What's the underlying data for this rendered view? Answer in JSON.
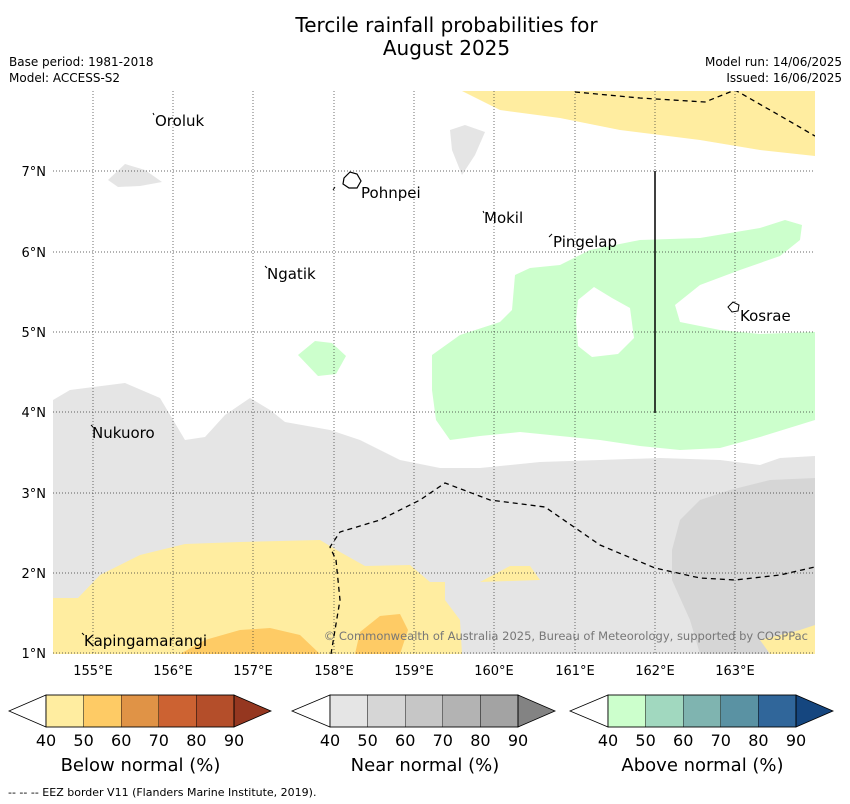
{
  "title_line1": "Tercile rainfall probabilities for",
  "title_line2": "August 2025",
  "base_period": "Base period: 1981-2018",
  "model": "Model: ACCESS-S2",
  "model_run": "Model run: 14/06/2025",
  "issued": "Issued: 16/06/2025",
  "copyright": "© Commonwealth of Australia 2025, Bureau of Meteorology, supported by COSPPac",
  "footnote": "--  --  -- EEZ border V11 (Flanders Marine Institute, 2019).",
  "map": {
    "x_ticks": [
      "155°E",
      "156°E",
      "157°E",
      "158°E",
      "159°E",
      "160°E",
      "161°E",
      "162°E",
      "163°E"
    ],
    "y_ticks": [
      "7°N",
      "6°N",
      "5°N",
      "4°N",
      "3°N",
      "2°N",
      "1°N"
    ],
    "places": [
      "Oroluk",
      "Pohnpei",
      "Mokil",
      "Pingelap",
      "Ngatik",
      "Kosrae",
      "Nukuoro",
      "Kapingamarangi"
    ]
  },
  "colorbars": [
    {
      "label": "Below normal (%)",
      "ticks": [
        "40",
        "50",
        "60",
        "70",
        "80",
        "90"
      ],
      "colors": [
        "#ffeda0",
        "#fecb65",
        "#e09346",
        "#cc6232",
        "#b44e2a",
        "#953720"
      ]
    },
    {
      "label": "Near normal (%)",
      "ticks": [
        "40",
        "50",
        "60",
        "70",
        "80",
        "90"
      ],
      "colors": [
        "#e5e5e5",
        "#d6d6d6",
        "#c6c6c6",
        "#b3b3b3",
        "#a3a3a3",
        "#838383"
      ]
    },
    {
      "label": "Above normal (%)",
      "ticks": [
        "40",
        "50",
        "60",
        "70",
        "80",
        "90"
      ],
      "colors": [
        "#ccffcc",
        "#a1d8bf",
        "#7fb4b0",
        "#5a92a3",
        "#30669a",
        "#15467f"
      ]
    }
  ]
}
